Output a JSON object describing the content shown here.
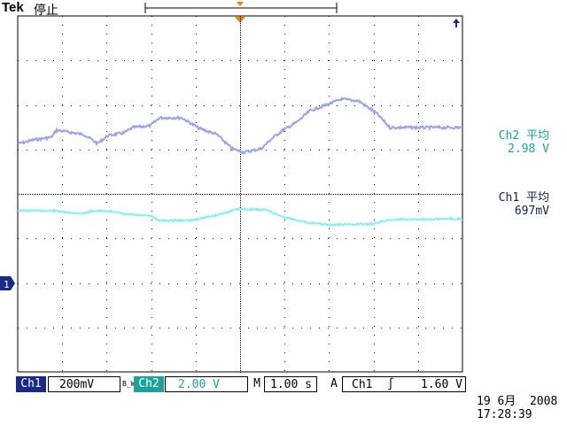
{
  "header": {
    "brand": "Tek",
    "status": "停止"
  },
  "channels": {
    "ch2": {
      "label": "Ch2 平均",
      "value": "2.98 V",
      "color": "#9aa2ea"
    },
    "ch1": {
      "label": "Ch1 平均",
      "value": "697mV",
      "color": "#88f0f0"
    }
  },
  "bottom_bar": {
    "ch1_tag": "Ch1",
    "ch1_scale": "200mV",
    "bw_mark": "B_W",
    "ch2_tag": "Ch2",
    "ch2_scale": "2.00 V",
    "time_tag": "M",
    "time_scale": "1.00 s",
    "trigger_tag": "A",
    "trigger_source": "Ch1",
    "trigger_slope": "∫",
    "trigger_level": "1.60 V"
  },
  "ground_marker": "1",
  "datetime": {
    "date": "19 6月  2008",
    "time": "17:28:39"
  }
}
